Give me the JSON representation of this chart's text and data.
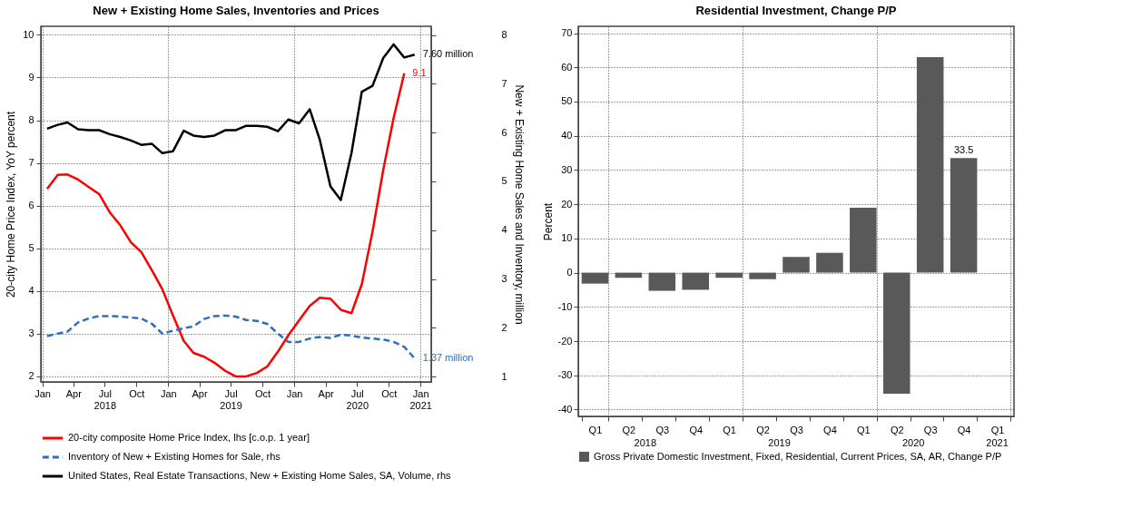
{
  "chart_data": [
    {
      "type": "line",
      "title": "New + Existing Home Sales, Inventories and Prices",
      "ylabel": "20-city Home Price Index, YoY percent",
      "y2label": "New + Existing Home Sales and Inventory, million",
      "x": [
        "2018-01-15",
        "2018-02-15",
        "2018-03-15",
        "2018-04-15",
        "2018-05-15",
        "2018-06-15",
        "2018-07-15",
        "2018-08-15",
        "2018-09-15",
        "2018-10-15",
        "2018-11-15",
        "2018-12-15",
        "2019-01-15",
        "2019-02-15",
        "2019-03-15",
        "2019-04-15",
        "2019-05-15",
        "2019-06-15",
        "2019-07-15",
        "2019-08-15",
        "2019-09-15",
        "2019-10-15",
        "2019-11-15",
        "2019-12-15",
        "2020-01-15",
        "2020-02-15",
        "2020-03-15",
        "2020-04-15",
        "2020-05-15",
        "2020-06-15",
        "2020-07-15",
        "2020-08-15",
        "2020-09-15",
        "2020-10-15",
        "2020-11-15",
        "2020-12-15"
      ],
      "series": [
        {
          "name": "20-city composite Home Price Index, lhs [c.o.p. 1 year]",
          "color": "#ff0000",
          "line_style": "solid",
          "axis": "y",
          "values": [
            6.39,
            6.72,
            6.73,
            6.61,
            6.44,
            6.27,
            5.85,
            5.54,
            5.14,
            4.91,
            4.48,
            4.04,
            3.42,
            2.83,
            2.55,
            2.46,
            2.32,
            2.13,
            2.0,
            2.0,
            2.08,
            2.23,
            2.58,
            2.96,
            3.31,
            3.65,
            3.84,
            3.82,
            3.56,
            3.48,
            4.16,
            5.39,
            6.83,
            8.05,
            9.1,
            null
          ],
          "value_labels": [
            null,
            null,
            null,
            null,
            null,
            null,
            null,
            null,
            null,
            null,
            null,
            null,
            null,
            null,
            null,
            null,
            null,
            null,
            null,
            null,
            null,
            null,
            null,
            null,
            null,
            null,
            null,
            null,
            null,
            null,
            null,
            null,
            null,
            null,
            "9.1",
            null
          ]
        },
        {
          "name": "Inventory of New + Existing Homes for Sale, rhs",
          "color": "#2f6ebf",
          "line_style": "dashed",
          "axis": "y2",
          "values": [
            1.83,
            1.88,
            1.92,
            2.11,
            2.19,
            2.24,
            2.24,
            2.23,
            2.21,
            2.19,
            2.08,
            1.88,
            1.94,
            1.99,
            2.03,
            2.18,
            2.24,
            2.25,
            2.23,
            2.16,
            2.14,
            2.08,
            1.88,
            1.71,
            1.71,
            1.78,
            1.81,
            1.79,
            1.86,
            1.84,
            1.8,
            1.78,
            1.76,
            1.71,
            1.61,
            1.37
          ],
          "value_labels": [
            null,
            null,
            null,
            null,
            null,
            null,
            null,
            null,
            null,
            null,
            null,
            null,
            null,
            null,
            null,
            null,
            null,
            null,
            null,
            null,
            null,
            null,
            null,
            null,
            null,
            null,
            null,
            null,
            null,
            null,
            null,
            null,
            null,
            null,
            null,
            "1.37 million"
          ]
        },
        {
          "name": "United States, Real Estate Transactions, New + Existing Home Sales, SA, Volume, rhs",
          "color": "#000000",
          "line_style": "solid",
          "axis": "y2",
          "values": [
            6.08,
            6.16,
            6.21,
            6.07,
            6.05,
            6.05,
            5.97,
            5.91,
            5.84,
            5.75,
            5.77,
            5.58,
            5.62,
            6.04,
            5.94,
            5.91,
            5.94,
            6.05,
            6.05,
            6.14,
            6.14,
            6.12,
            6.03,
            6.27,
            6.19,
            6.48,
            5.86,
            4.9,
            4.62,
            5.58,
            6.84,
            6.96,
            7.53,
            7.81,
            7.54,
            7.6
          ],
          "value_labels": [
            null,
            null,
            null,
            null,
            null,
            null,
            null,
            null,
            null,
            null,
            null,
            null,
            null,
            null,
            null,
            null,
            null,
            null,
            null,
            null,
            null,
            null,
            null,
            null,
            null,
            null,
            null,
            null,
            null,
            null,
            null,
            null,
            null,
            null,
            null,
            "7.60 million"
          ]
        }
      ],
      "xlim": [
        "2017-12-28",
        "2021-02-01"
      ],
      "xticks": [
        {
          "value": "2018-01-01",
          "label": "Jan"
        },
        {
          "value": "2018-04-01",
          "label": "Apr"
        },
        {
          "value": "2018-07-01",
          "label": "Jul\n2018"
        },
        {
          "value": "2018-10-01",
          "label": "Oct"
        },
        {
          "value": "2019-01-01",
          "label": "Jan"
        },
        {
          "value": "2019-04-01",
          "label": "Apr"
        },
        {
          "value": "2019-07-01",
          "label": "Jul\n2019"
        },
        {
          "value": "2019-10-01",
          "label": "Oct"
        },
        {
          "value": "2020-01-01",
          "label": "Jan"
        },
        {
          "value": "2020-04-01",
          "label": "Apr"
        },
        {
          "value": "2020-07-01",
          "label": "Jul\n2020"
        },
        {
          "value": "2020-10-01",
          "label": "Oct"
        },
        {
          "value": "2021-01-01",
          "label": "Jan\n2021"
        }
      ],
      "ylim": [
        1.87,
        10.2
      ],
      "yticks": [
        2,
        3,
        4,
        5,
        6,
        7,
        8,
        9,
        10
      ],
      "y2lim": [
        0.89,
        8.18
      ],
      "y2ticks": [
        1,
        2,
        3,
        4,
        5,
        6,
        7,
        8
      ],
      "grid": true,
      "legend": "bottom"
    },
    {
      "type": "bar",
      "title": "Residential Investment, Change P/P",
      "ylabel": "Percent",
      "categories": [
        "Q1",
        "Q2",
        "Q3",
        "Q4",
        "Q1",
        "Q2",
        "Q3",
        "Q4",
        "Q1",
        "Q2",
        "Q3",
        "Q4",
        "Q1"
      ],
      "series": [
        {
          "name": "Gross Private Domestic Investment, Fixed, Residential, Current Prices, SA, AR, Change P/P",
          "color": "#595959",
          "values": [
            -3.2,
            -1.5,
            -5.3,
            -5.0,
            -1.5,
            -1.9,
            4.6,
            5.8,
            19.0,
            -35.4,
            63.0,
            33.5,
            null
          ],
          "value_labels": [
            null,
            null,
            null,
            null,
            null,
            null,
            null,
            null,
            null,
            null,
            null,
            "33.5",
            null
          ]
        }
      ],
      "ylim": [
        -42,
        72
      ],
      "yticks": [
        -40,
        -30,
        -20,
        -10,
        0,
        10,
        20,
        30,
        40,
        50,
        60,
        70
      ],
      "grid": true,
      "legend": "bottom",
      "annotations": [
        "2018",
        "2019",
        "2020",
        "2021"
      ]
    }
  ]
}
